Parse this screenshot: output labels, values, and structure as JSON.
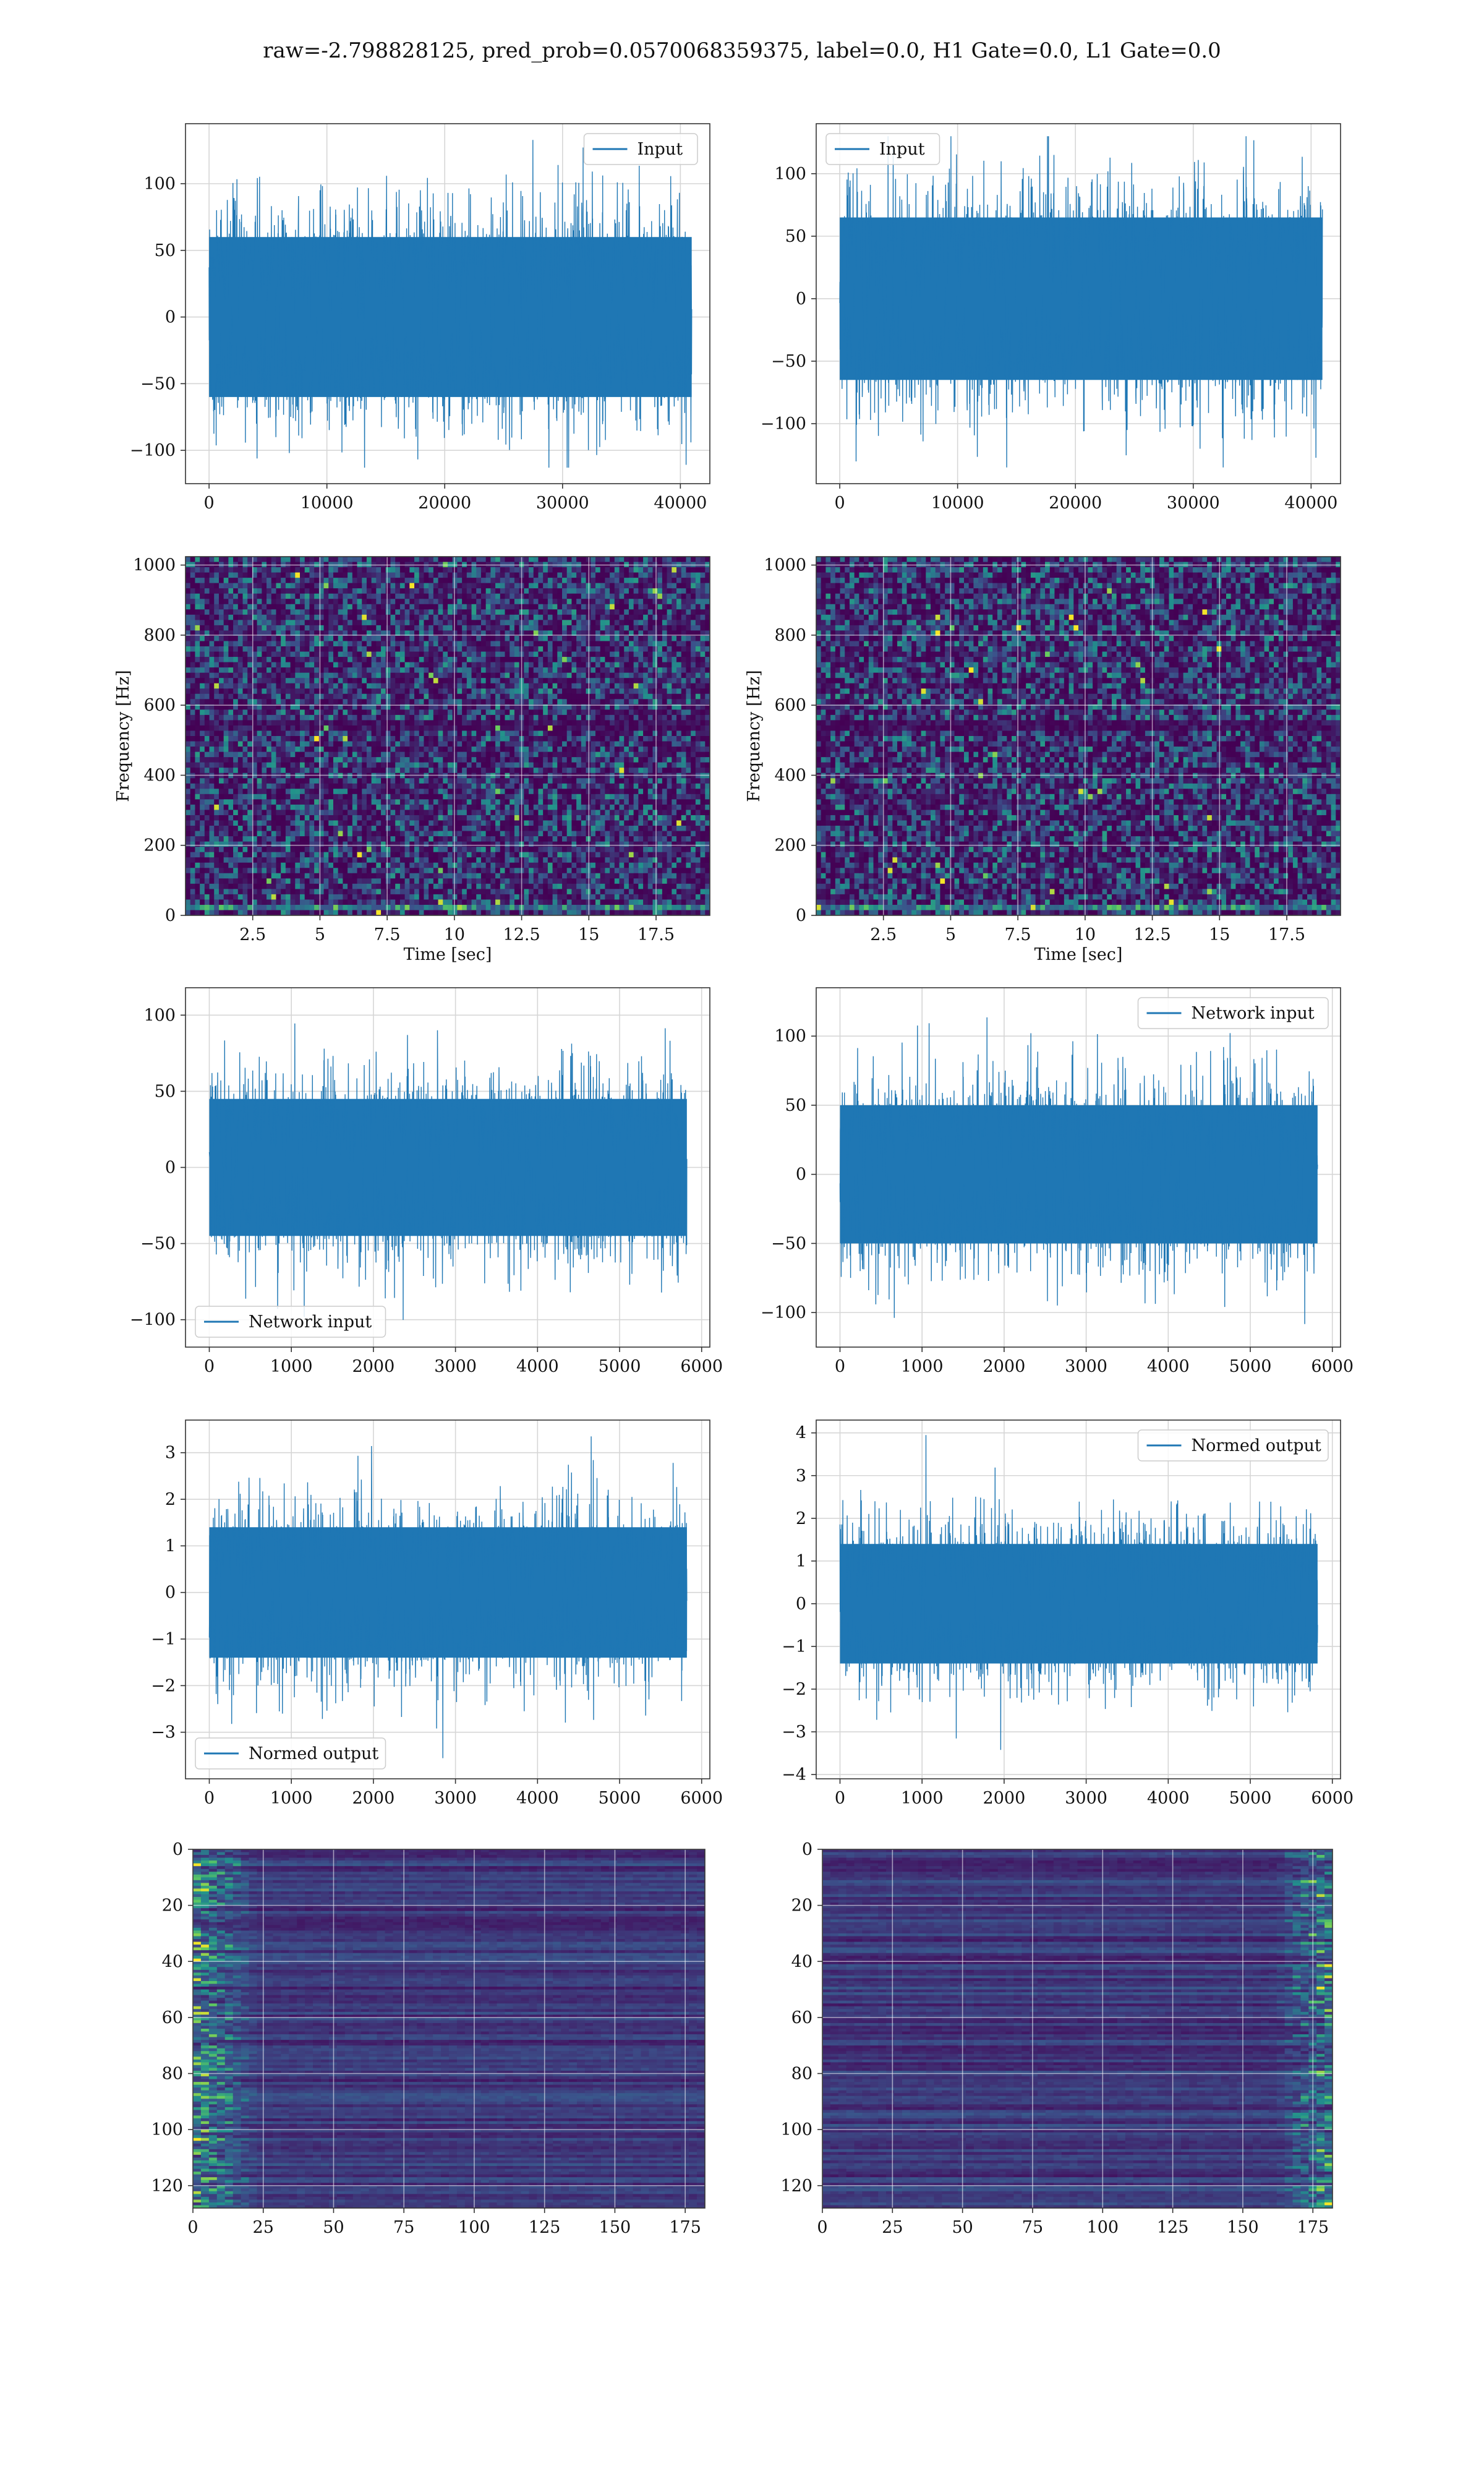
{
  "figure": {
    "suptitle": "raw=-2.798828125, pred_prob=0.0570068359375, label=0.0, H1 Gate=0.0, L1 Gate=0.0"
  },
  "colors": {
    "line": "#1f77b4",
    "grid": "#d6d6d6",
    "viridis_low": "#440154",
    "viridis_mid": "#21918c",
    "viridis_high": "#fde725"
  },
  "chart_data": [
    {
      "id": "h1-input",
      "type": "line",
      "series_name": "Input",
      "legend": "top-right",
      "xlim": [
        -2000,
        42500
      ],
      "ylim": [
        -125,
        145
      ],
      "xticks": [
        0,
        10000,
        20000,
        30000,
        40000
      ],
      "yticks": [
        -100,
        -50,
        0,
        50,
        100
      ],
      "x_range": [
        0,
        40960
      ],
      "envelope": [
        -60,
        60
      ],
      "peak_range": [
        -113,
        136
      ],
      "grid": true
    },
    {
      "id": "l1-input",
      "type": "line",
      "series_name": "Input",
      "legend": "top-left",
      "xlim": [
        -2000,
        42500
      ],
      "ylim": [
        -148,
        140
      ],
      "xticks": [
        0,
        10000,
        20000,
        30000,
        40000
      ],
      "yticks": [
        -100,
        -50,
        0,
        50,
        100
      ],
      "x_range": [
        0,
        40960
      ],
      "envelope": [
        -65,
        65
      ],
      "peak_range": [
        -135,
        130
      ],
      "grid": true
    },
    {
      "id": "h1-spectrogram",
      "type": "heatmap",
      "xlabel": "Time [sec]",
      "ylabel": "Frequency [Hz]",
      "xlim": [
        0,
        19.5
      ],
      "ylim": [
        0,
        1024
      ],
      "xticks": [
        2.5,
        5.0,
        7.5,
        10.0,
        12.5,
        15.0,
        17.5
      ],
      "yticks": [
        0,
        200,
        400,
        600,
        800,
        1000
      ],
      "colormap": "viridis",
      "grid": true
    },
    {
      "id": "l1-spectrogram",
      "type": "heatmap",
      "xlabel": "Time [sec]",
      "ylabel": "Frequency [Hz]",
      "xlim": [
        0,
        19.5
      ],
      "ylim": [
        0,
        1024
      ],
      "xticks": [
        2.5,
        5.0,
        7.5,
        10.0,
        12.5,
        15.0,
        17.5
      ],
      "yticks": [
        0,
        200,
        400,
        600,
        800,
        1000
      ],
      "colormap": "viridis",
      "grid": true
    },
    {
      "id": "h1-network-input",
      "type": "line",
      "series_name": "Network input",
      "legend": "bottom-left",
      "xlim": [
        -290,
        6100
      ],
      "ylim": [
        -118,
        118
      ],
      "xticks": [
        0,
        1000,
        2000,
        3000,
        4000,
        5000,
        6000
      ],
      "yticks": [
        -100,
        -50,
        0,
        50,
        100
      ],
      "x_range": [
        0,
        5820
      ],
      "envelope": [
        -45,
        45
      ],
      "peak_range": [
        -113,
        104
      ],
      "grid": true
    },
    {
      "id": "l1-network-input",
      "type": "line",
      "series_name": "Network input",
      "legend": "top-right",
      "xlim": [
        -290,
        6100
      ],
      "ylim": [
        -125,
        135
      ],
      "xticks": [
        0,
        1000,
        2000,
        3000,
        4000,
        5000,
        6000
      ],
      "yticks": [
        -100,
        -50,
        0,
        50,
        100
      ],
      "x_range": [
        0,
        5820
      ],
      "envelope": [
        -50,
        50
      ],
      "peak_range": [
        -113,
        123
      ],
      "grid": true
    },
    {
      "id": "h1-normed-output",
      "type": "line",
      "series_name": "Normed output",
      "legend": "bottom-left",
      "xlim": [
        -290,
        6100
      ],
      "ylim": [
        -4.0,
        3.7
      ],
      "xticks": [
        0,
        1000,
        2000,
        3000,
        4000,
        5000,
        6000
      ],
      "yticks": [
        -3,
        -2,
        -1,
        0,
        1,
        2,
        3
      ],
      "x_range": [
        0,
        5820
      ],
      "envelope": [
        -1.4,
        1.4
      ],
      "peak_range": [
        -3.6,
        3.35
      ],
      "grid": true
    },
    {
      "id": "l1-normed-output",
      "type": "line",
      "series_name": "Normed output",
      "legend": "top-right",
      "xlim": [
        -290,
        6100
      ],
      "ylim": [
        -4.1,
        4.3
      ],
      "xticks": [
        0,
        1000,
        2000,
        3000,
        4000,
        5000,
        6000
      ],
      "yticks": [
        -4,
        -3,
        -2,
        -1,
        0,
        1,
        2,
        3,
        4
      ],
      "x_range": [
        0,
        5820
      ],
      "envelope": [
        -1.4,
        1.4
      ],
      "peak_range": [
        -3.6,
        3.95
      ],
      "grid": true
    },
    {
      "id": "h1-feature-map",
      "type": "heatmap",
      "xlim": [
        0,
        182
      ],
      "ylim": [
        128,
        0
      ],
      "xticks": [
        0,
        25,
        50,
        75,
        100,
        125,
        150,
        175
      ],
      "yticks": [
        0,
        20,
        40,
        60,
        80,
        100,
        120
      ],
      "colormap": "viridis",
      "bright_side": "left",
      "grid": true
    },
    {
      "id": "l1-feature-map",
      "type": "heatmap",
      "xlim": [
        0,
        182
      ],
      "ylim": [
        128,
        0
      ],
      "xticks": [
        0,
        25,
        50,
        75,
        100,
        125,
        150,
        175
      ],
      "yticks": [
        0,
        20,
        40,
        60,
        80,
        100,
        120
      ],
      "colormap": "viridis",
      "bright_side": "right",
      "grid": true
    }
  ]
}
